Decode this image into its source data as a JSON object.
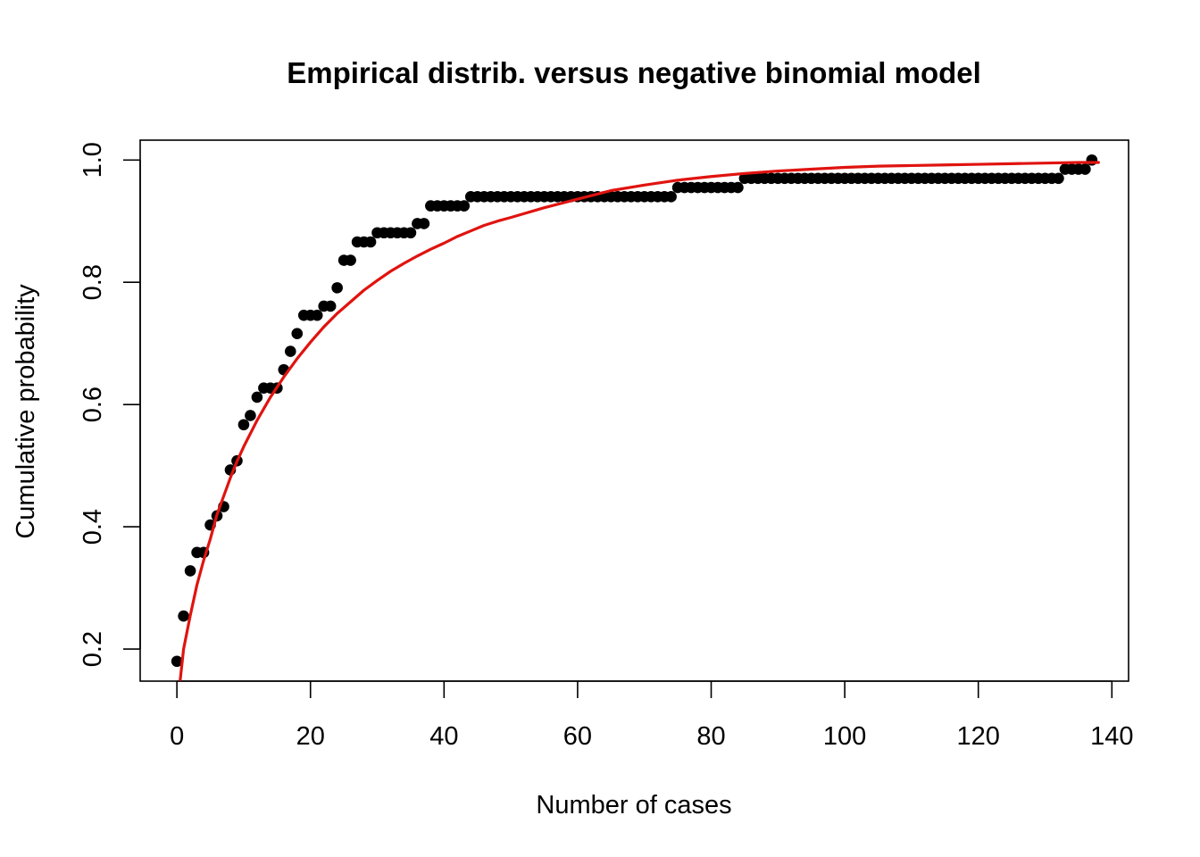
{
  "chart_data": {
    "type": "scatter",
    "title": "Empirical distrib. versus negative binomial model",
    "xlabel": "Number of cases",
    "ylabel": "Cumulative probability",
    "xlim": [
      -5.5,
      142.5
    ],
    "ylim": [
      0.1475,
      1.0325
    ],
    "x_ticks": [
      0,
      20,
      40,
      60,
      80,
      100,
      120,
      140
    ],
    "y_ticks": [
      0.2,
      0.4,
      0.6,
      0.8,
      1.0
    ],
    "x_tick_labels": [
      "0",
      "20",
      "40",
      "60",
      "80",
      "100",
      "120",
      "140"
    ],
    "y_tick_labels": [
      "0.2",
      "0.4",
      "0.6",
      "0.8",
      "1.0"
    ],
    "grid": false,
    "series": [
      {
        "kind": "points",
        "color": "#000000",
        "steps": [
          [
            0,
            0.18
          ],
          [
            1,
            0.254
          ],
          [
            2,
            0.328
          ],
          [
            3,
            0.358
          ],
          [
            5,
            0.403
          ],
          [
            6,
            0.418
          ],
          [
            7,
            0.433
          ],
          [
            8,
            0.493
          ],
          [
            9,
            0.508
          ],
          [
            10,
            0.567
          ],
          [
            11,
            0.582
          ],
          [
            12,
            0.612
          ],
          [
            13,
            0.627
          ],
          [
            16,
            0.657
          ],
          [
            17,
            0.687
          ],
          [
            18,
            0.716
          ],
          [
            19,
            0.746
          ],
          [
            22,
            0.761
          ],
          [
            24,
            0.791
          ],
          [
            25,
            0.836
          ],
          [
            27,
            0.866
          ],
          [
            30,
            0.881
          ],
          [
            36,
            0.896
          ],
          [
            38,
            0.925
          ],
          [
            44,
            0.94
          ],
          [
            75,
            0.955
          ],
          [
            85,
            0.97
          ],
          [
            133,
            0.985
          ],
          [
            137,
            1.0
          ]
        ],
        "x_max": 137
      },
      {
        "kind": "curve",
        "color": "#e0130f",
        "model": "negative binomial",
        "x": [
          0.5,
          1,
          2,
          3,
          4,
          5,
          6,
          7,
          8,
          9,
          10,
          12,
          14,
          16,
          18,
          20,
          22,
          24,
          26,
          28,
          30,
          32,
          34,
          36,
          38,
          40,
          42,
          44,
          46,
          48,
          50,
          55,
          60,
          65,
          70,
          75,
          80,
          85,
          90,
          95,
          100,
          105,
          110,
          115,
          120,
          125,
          130,
          135,
          138
        ],
        "y": [
          0.15,
          0.2,
          0.255,
          0.305,
          0.345,
          0.38,
          0.42,
          0.45,
          0.48,
          0.507,
          0.531,
          0.574,
          0.612,
          0.645,
          0.675,
          0.702,
          0.727,
          0.749,
          0.768,
          0.787,
          0.803,
          0.818,
          0.831,
          0.843,
          0.854,
          0.864,
          0.875,
          0.884,
          0.893,
          0.9,
          0.906,
          0.922,
          0.936,
          0.95,
          0.959,
          0.967,
          0.973,
          0.978,
          0.982,
          0.985,
          0.988,
          0.99,
          0.991,
          0.992,
          0.993,
          0.994,
          0.995,
          0.996,
          0.996
        ]
      }
    ]
  }
}
